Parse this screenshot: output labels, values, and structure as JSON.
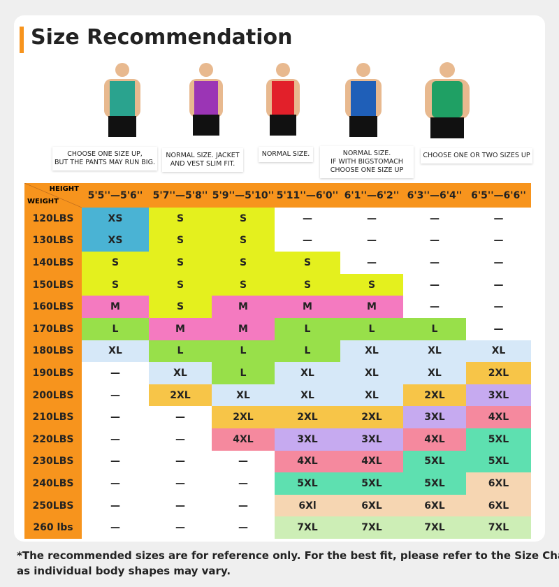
{
  "header": {
    "title": "Size Recommendation"
  },
  "figures": [
    {
      "caption": [
        "CHOOSE ONE SIZE UP,",
        "BUT THE PANTS MAY RUN BIG."
      ]
    },
    {
      "caption": [
        "NORMAL SIZE. JACKET",
        "AND VEST SLIM FIT."
      ]
    },
    {
      "caption": [
        "NORMAL SIZE."
      ]
    },
    {
      "caption": [
        "NORMAL SIZE.",
        "IF WITH BIGSTOMACH",
        "CHOOSE ONE SIZE UP"
      ]
    },
    {
      "caption": [
        "CHOOSE ONE OR TWO SIZES UP"
      ]
    }
  ],
  "table": {
    "corner": {
      "top": "HEIGHT",
      "bottom": "WEIGHT"
    },
    "columns": [
      "5'5''—5'6''",
      "5'7''—5'8''",
      "5'9''—5'10''",
      "5'11''—6'0''",
      "6'1''—6'2''",
      "6'3''—6'4''",
      "6'5''—6'6''"
    ],
    "rows": [
      {
        "weight": "120LBS",
        "cells": [
          {
            "size": "XS",
            "color": "#4ab3d4"
          },
          {
            "size": "S",
            "color": "#e4f01e"
          },
          {
            "size": "S",
            "color": "#e4f01e"
          },
          {
            "size": "—"
          },
          {
            "size": "—"
          },
          {
            "size": "—"
          },
          {
            "size": "—"
          }
        ]
      },
      {
        "weight": "130LBS",
        "cells": [
          {
            "size": "XS",
            "color": "#4ab3d4"
          },
          {
            "size": "S",
            "color": "#e4f01e"
          },
          {
            "size": "S",
            "color": "#e4f01e"
          },
          {
            "size": "—"
          },
          {
            "size": "—"
          },
          {
            "size": "—"
          },
          {
            "size": "—"
          }
        ]
      },
      {
        "weight": "140LBS",
        "cells": [
          {
            "size": "S",
            "color": "#e4f01e"
          },
          {
            "size": "S",
            "color": "#e4f01e"
          },
          {
            "size": "S",
            "color": "#e4f01e"
          },
          {
            "size": "S",
            "color": "#e4f01e"
          },
          {
            "size": "—"
          },
          {
            "size": "—"
          },
          {
            "size": "—"
          }
        ]
      },
      {
        "weight": "150LBS",
        "cells": [
          {
            "size": "S",
            "color": "#e4f01e"
          },
          {
            "size": "S",
            "color": "#e4f01e"
          },
          {
            "size": "S",
            "color": "#e4f01e"
          },
          {
            "size": "S",
            "color": "#e4f01e"
          },
          {
            "size": "S",
            "color": "#e4f01e"
          },
          {
            "size": "—"
          },
          {
            "size": "—"
          }
        ]
      },
      {
        "weight": "160LBS",
        "cells": [
          {
            "size": "M",
            "color": "#f47ac0"
          },
          {
            "size": "S",
            "color": "#e4f01e"
          },
          {
            "size": "M",
            "color": "#f47ac0"
          },
          {
            "size": "M",
            "color": "#f47ac0"
          },
          {
            "size": "M",
            "color": "#f47ac0"
          },
          {
            "size": "—"
          },
          {
            "size": "—"
          }
        ]
      },
      {
        "weight": "170LBS",
        "cells": [
          {
            "size": "L",
            "color": "#98e04a"
          },
          {
            "size": "M",
            "color": "#f47ac0"
          },
          {
            "size": "M",
            "color": "#f47ac0"
          },
          {
            "size": "L",
            "color": "#98e04a"
          },
          {
            "size": "L",
            "color": "#98e04a"
          },
          {
            "size": "L",
            "color": "#98e04a"
          },
          {
            "size": "—"
          }
        ]
      },
      {
        "weight": "180LBS",
        "cells": [
          {
            "size": "XL",
            "color": "#d6e8f8"
          },
          {
            "size": "L",
            "color": "#98e04a"
          },
          {
            "size": "L",
            "color": "#98e04a"
          },
          {
            "size": "L",
            "color": "#98e04a"
          },
          {
            "size": "XL",
            "color": "#d6e8f8"
          },
          {
            "size": "XL",
            "color": "#d6e8f8"
          },
          {
            "size": "XL",
            "color": "#d6e8f8"
          }
        ]
      },
      {
        "weight": "190LBS",
        "cells": [
          {
            "size": "—"
          },
          {
            "size": "XL",
            "color": "#d6e8f8"
          },
          {
            "size": "L",
            "color": "#98e04a"
          },
          {
            "size": "XL",
            "color": "#d6e8f8"
          },
          {
            "size": "XL",
            "color": "#d6e8f8"
          },
          {
            "size": "XL",
            "color": "#d6e8f8"
          },
          {
            "size": "2XL",
            "color": "#f7c548"
          }
        ]
      },
      {
        "weight": "200LBS",
        "cells": [
          {
            "size": "—"
          },
          {
            "size": "2XL",
            "color": "#f7c548"
          },
          {
            "size": "XL",
            "color": "#d6e8f8"
          },
          {
            "size": "XL",
            "color": "#d6e8f8"
          },
          {
            "size": "XL",
            "color": "#d6e8f8"
          },
          {
            "size": "2XL",
            "color": "#f7c548"
          },
          {
            "size": "3XL",
            "color": "#c6aaf0"
          }
        ]
      },
      {
        "weight": "210LBS",
        "cells": [
          {
            "size": "—"
          },
          {
            "size": "—"
          },
          {
            "size": "2XL",
            "color": "#f7c548"
          },
          {
            "size": "2XL",
            "color": "#f7c548"
          },
          {
            "size": "2XL",
            "color": "#f7c548"
          },
          {
            "size": "3XL",
            "color": "#c6aaf0"
          },
          {
            "size": "4XL",
            "color": "#f5899e"
          }
        ]
      },
      {
        "weight": "220LBS",
        "cells": [
          {
            "size": "—"
          },
          {
            "size": "—"
          },
          {
            "size": "4XL",
            "color": "#f5899e"
          },
          {
            "size": "3XL",
            "color": "#c6aaf0"
          },
          {
            "size": "3XL",
            "color": "#c6aaf0"
          },
          {
            "size": "4XL",
            "color": "#f5899e"
          },
          {
            "size": "5XL",
            "color": "#5ee0b0"
          }
        ]
      },
      {
        "weight": "230LBS",
        "cells": [
          {
            "size": "—"
          },
          {
            "size": "—"
          },
          {
            "size": "—"
          },
          {
            "size": "4XL",
            "color": "#f5899e"
          },
          {
            "size": "4XL",
            "color": "#f5899e"
          },
          {
            "size": "5XL",
            "color": "#5ee0b0"
          },
          {
            "size": "5XL",
            "color": "#5ee0b0"
          }
        ]
      },
      {
        "weight": "240LBS",
        "cells": [
          {
            "size": "—"
          },
          {
            "size": "—"
          },
          {
            "size": "—"
          },
          {
            "size": "5XL",
            "color": "#5ee0b0"
          },
          {
            "size": "5XL",
            "color": "#5ee0b0"
          },
          {
            "size": "5XL",
            "color": "#5ee0b0"
          },
          {
            "size": "6XL",
            "color": "#f6d6b2"
          }
        ]
      },
      {
        "weight": "250LBS",
        "cells": [
          {
            "size": "—"
          },
          {
            "size": "—"
          },
          {
            "size": "—"
          },
          {
            "size": "6Xl",
            "color": "#f6d6b2"
          },
          {
            "size": "6XL",
            "color": "#f6d6b2"
          },
          {
            "size": "6XL",
            "color": "#f6d6b2"
          },
          {
            "size": "6XL",
            "color": "#f6d6b2"
          }
        ]
      },
      {
        "weight": "260 lbs",
        "cells": [
          {
            "size": "—"
          },
          {
            "size": "—"
          },
          {
            "size": "—"
          },
          {
            "size": "7XL",
            "color": "#cdeeb6"
          },
          {
            "size": "7XL",
            "color": "#cdeeb6"
          },
          {
            "size": "7XL",
            "color": "#cdeeb6"
          },
          {
            "size": "7XL",
            "color": "#cdeeb6"
          }
        ]
      }
    ]
  },
  "footnote": [
    "*The recommended sizes are for reference only. For the best fit, please refer to the Size Chart,",
    "as individual body shapes may vary."
  ]
}
